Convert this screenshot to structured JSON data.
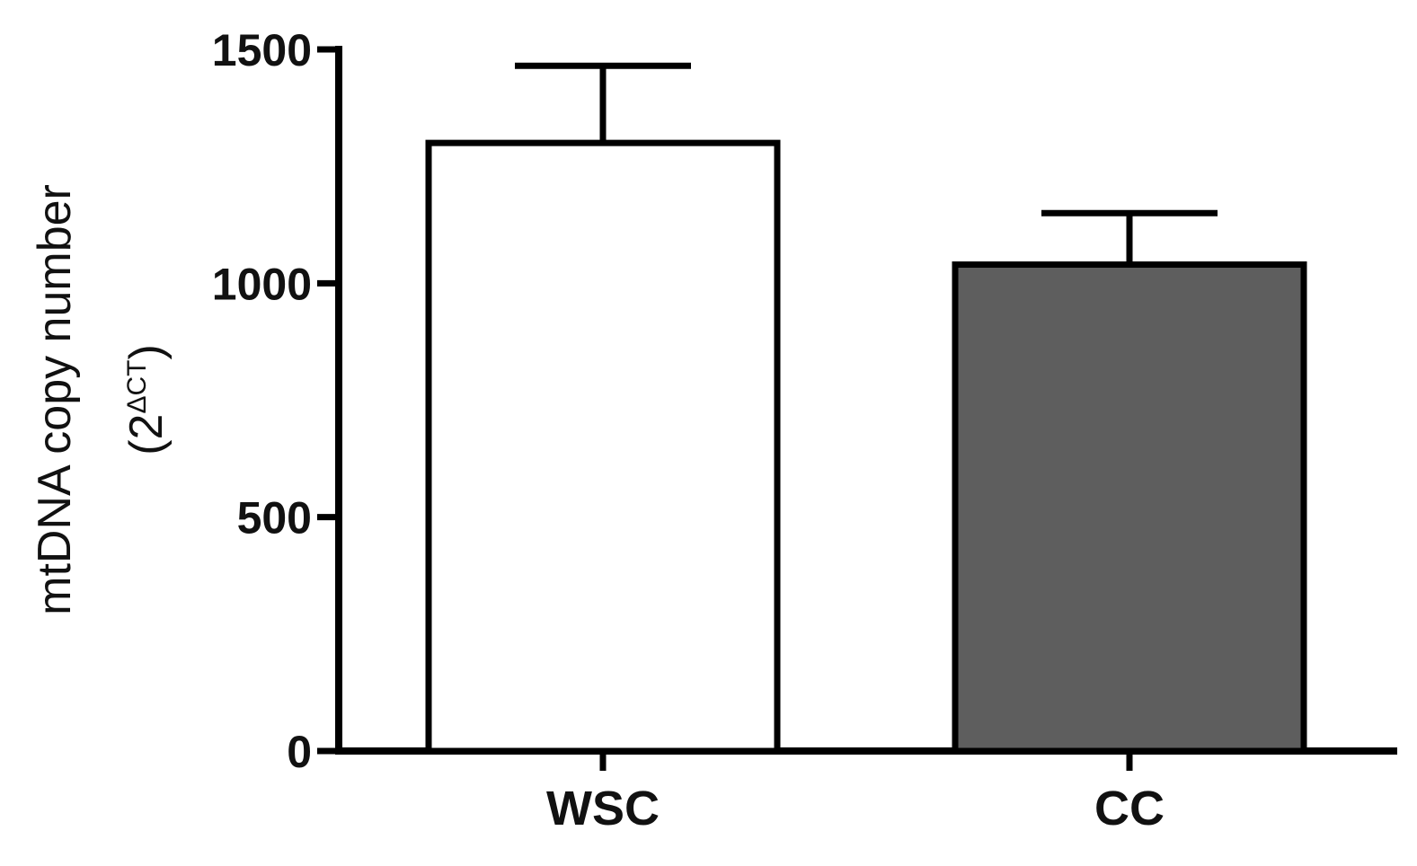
{
  "chart_data": {
    "type": "bar",
    "categories": [
      "WSC",
      "CC"
    ],
    "values": [
      1300,
      1040
    ],
    "errors": [
      165,
      110
    ],
    "bar_colors": [
      "#ffffff",
      "#5e5e5e"
    ],
    "stroke_color": "#000000",
    "ylim": [
      0,
      1500
    ],
    "yticks": [
      0,
      500,
      1000,
      1500
    ],
    "ylabel_line1": "mtDNA copy number",
    "ylabel_line2_prefix": "(2",
    "ylabel_line2_sup": "ΔCT",
    "ylabel_line2_suffix": ")",
    "xlabel": "",
    "title": "",
    "grid": false
  }
}
